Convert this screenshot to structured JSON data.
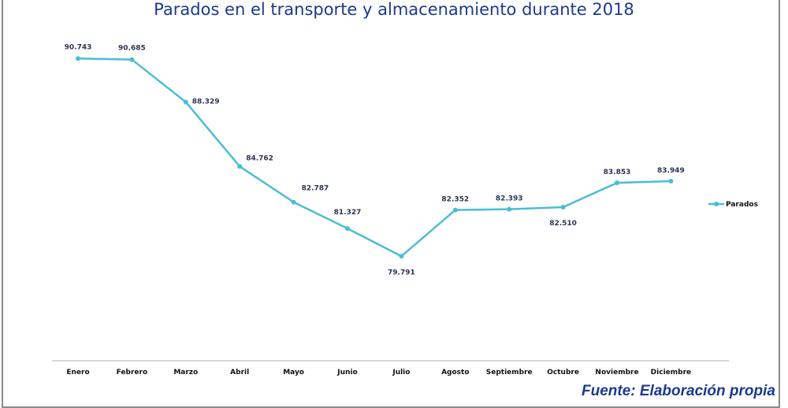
{
  "chart_data": {
    "type": "line",
    "title": "Parados en el transporte y almacenamiento durante 2018",
    "categories": [
      "Enero",
      "Febrero",
      "Marzo",
      "Abril",
      "Mayo",
      "Junio",
      "Julio",
      "Agosto",
      "Septiembre",
      "Octubre",
      "Noviembre",
      "Diciembre"
    ],
    "series": [
      {
        "name": "Parados",
        "values": [
          90.743,
          90.685,
          88.329,
          84.762,
          82.787,
          81.327,
          79.791,
          82.352,
          82.393,
          82.51,
          83.853,
          83.949
        ],
        "labels": [
          "90.743",
          "90.685",
          "88.329",
          "84.762",
          "82.787",
          "81.327",
          "79.791",
          "82.352",
          "82.393",
          "82.510",
          "83.853",
          "83.949"
        ],
        "color": "#4bbdd5"
      }
    ],
    "legend_position": "right",
    "grid": false,
    "source": "Fuente: Elaboración propia"
  }
}
